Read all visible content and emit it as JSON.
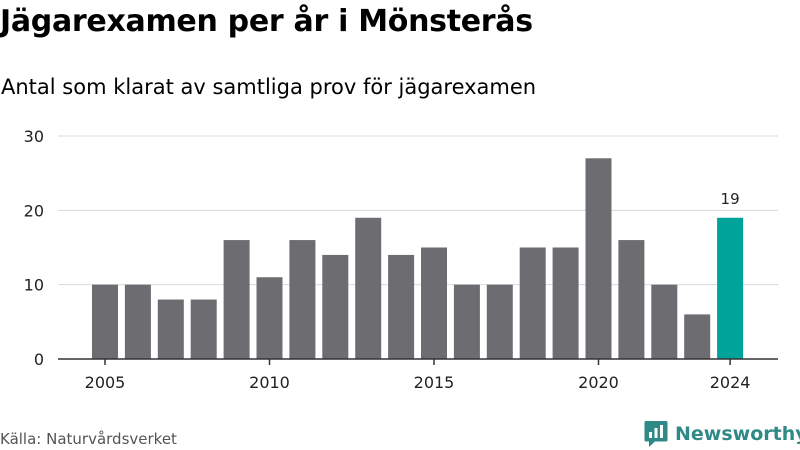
{
  "header": {
    "title": "Jägarexamen per år i Mönsterås",
    "subtitle": "Antal som klarat av samtliga prov för jägarexamen"
  },
  "footer": {
    "source": "Källa: Naturvårdsverket",
    "brand": "Newsworthy"
  },
  "icons": {
    "brand": "newsworthy-logo-icon"
  },
  "colors": {
    "bar": "#6d6c71",
    "highlight": "#00a39a",
    "grid": "#d9d9d9",
    "axis": "#333333",
    "brand": "#2f8a87"
  },
  "chart_data": {
    "type": "bar",
    "x": [
      2005,
      2006,
      2007,
      2008,
      2009,
      2010,
      2011,
      2012,
      2013,
      2014,
      2015,
      2016,
      2017,
      2018,
      2019,
      2020,
      2021,
      2022,
      2023,
      2024
    ],
    "values": [
      10,
      10,
      8,
      8,
      16,
      11,
      16,
      14,
      19,
      14,
      15,
      10,
      10,
      15,
      15,
      27,
      16,
      10,
      6,
      19
    ],
    "highlight_x": 2024,
    "xticks": [
      "2005",
      "2010",
      "2015",
      "2020",
      "2024"
    ],
    "yticks": [
      "0",
      "10",
      "20",
      "30"
    ],
    "ylim": [
      0,
      30
    ],
    "value_labels": [
      {
        "x": 2024,
        "text": "19"
      }
    ],
    "grid": true,
    "legend": false
  }
}
